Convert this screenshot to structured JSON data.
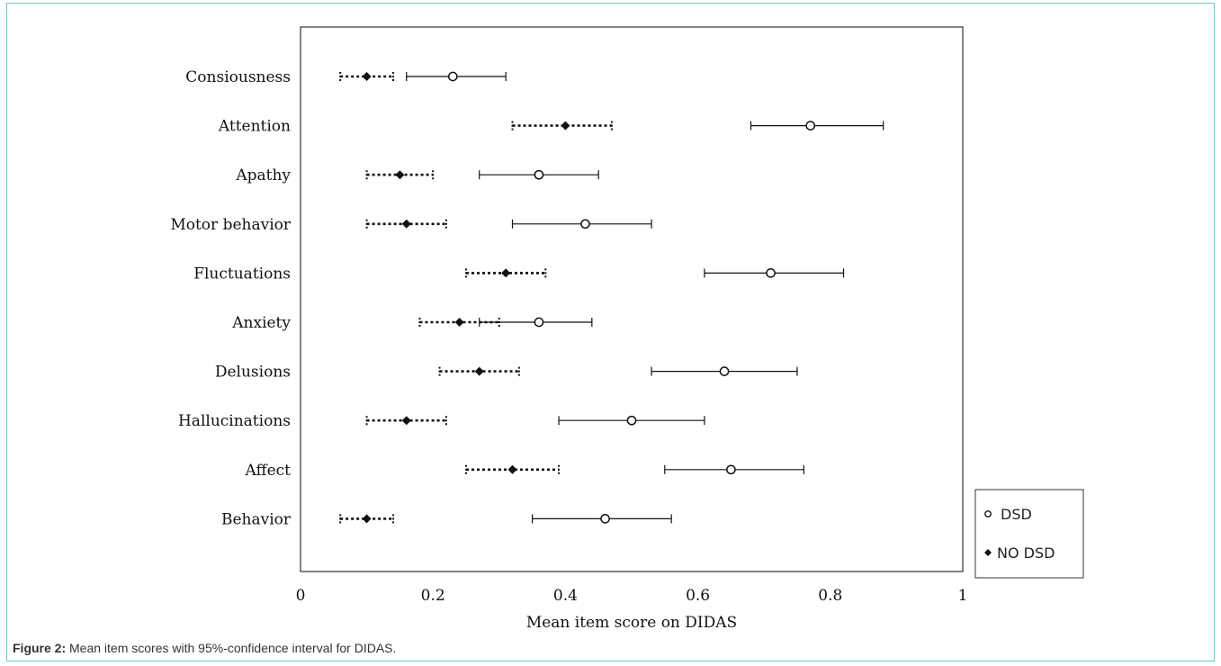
{
  "chart_data": {
    "type": "scatter",
    "xlabel": "Mean item score on DIDAS",
    "xlim": [
      0,
      1
    ],
    "xticks": [
      "0",
      "0.2",
      "0.4",
      "0.6",
      "0.8",
      "1"
    ],
    "categories": [
      "Consiousness",
      "Attention",
      "Apathy",
      "Motor behavior",
      "Fluctuations",
      "Anxiety",
      "Delusions",
      "Hallucinations",
      "Affect",
      "Behavior"
    ],
    "series": [
      {
        "name": "DSD",
        "marker": "open-circle",
        "line": "solid",
        "mean": [
          0.23,
          0.77,
          0.36,
          0.43,
          0.71,
          0.36,
          0.64,
          0.5,
          0.65,
          0.46
        ],
        "lower": [
          0.16,
          0.68,
          0.27,
          0.32,
          0.61,
          0.27,
          0.53,
          0.39,
          0.55,
          0.35
        ],
        "upper": [
          0.31,
          0.88,
          0.45,
          0.53,
          0.82,
          0.44,
          0.75,
          0.61,
          0.76,
          0.56
        ]
      },
      {
        "name": "NO DSD",
        "marker": "filled-diamond",
        "line": "dotted",
        "mean": [
          0.1,
          0.4,
          0.15,
          0.16,
          0.31,
          0.24,
          0.27,
          0.16,
          0.32,
          0.1
        ],
        "lower": [
          0.06,
          0.32,
          0.1,
          0.1,
          0.25,
          0.18,
          0.21,
          0.1,
          0.25,
          0.06
        ],
        "upper": [
          0.14,
          0.47,
          0.2,
          0.22,
          0.37,
          0.3,
          0.33,
          0.22,
          0.39,
          0.14
        ]
      }
    ],
    "legend": "outside-bottom-right"
  },
  "caption": {
    "label": "Figure 2:",
    "text": " Mean item scores with 95%-confidence interval for DIDAS."
  },
  "colors": {
    "frame": "#6cc9c3",
    "ink": "#111111"
  }
}
